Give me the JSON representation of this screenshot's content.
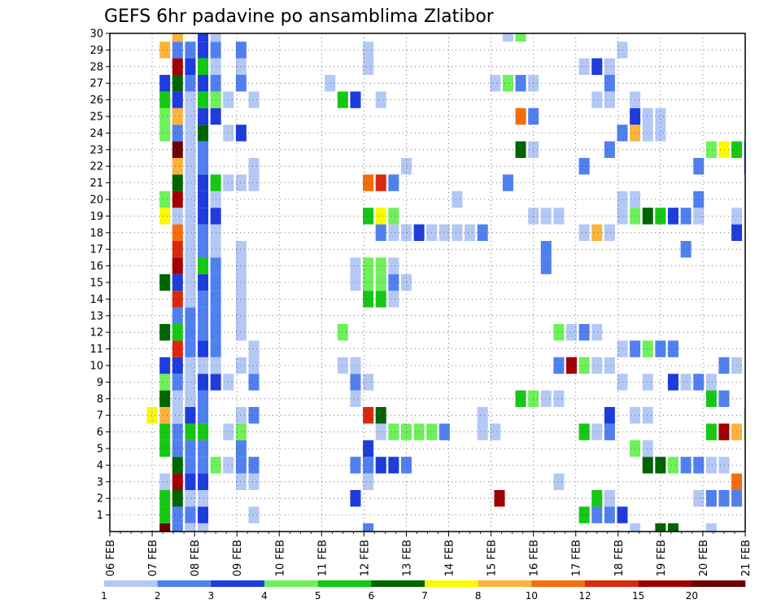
{
  "chart_data": {
    "type": "heatmap",
    "title": "GEFS 6hr padavine po ansamblima Zlatibor",
    "xlabel": "",
    "ylabel": "",
    "x_tick_labels": [
      "06 FEB",
      "07 FEB",
      "08 FEB",
      "09 FEB",
      "10 FEB",
      "11 FEB",
      "12 FEB",
      "13 FEB",
      "14 FEB",
      "15 FEB",
      "16 FEB",
      "17 FEB",
      "18 FEB",
      "19 FEB",
      "20 FEB",
      "21 FEB"
    ],
    "y_tick_labels": [
      "1",
      "2",
      "3",
      "4",
      "5",
      "6",
      "7",
      "8",
      "9",
      "10",
      "11",
      "12",
      "13",
      "14",
      "15",
      "16",
      "17",
      "18",
      "19",
      "20",
      "21",
      "22",
      "23",
      "24",
      "25",
      "26",
      "27",
      "28",
      "29",
      "30"
    ],
    "grid": true,
    "colorbar": {
      "labels": [
        "1",
        "2",
        "3",
        "4",
        "5",
        "6",
        "7",
        "8",
        "10",
        "12",
        "15",
        "20"
      ],
      "colors": [
        "#b4c8f5",
        "#5080f0",
        "#1e3cdc",
        "#6ef05a",
        "#14c814",
        "#006400",
        "#fafa00",
        "#fab43c",
        "#f56e0a",
        "#dc280a",
        "#a00000",
        "#6e0000"
      ]
    },
    "cells": [
      [
        7.3,
        0,
        11
      ],
      [
        7.6,
        0,
        1
      ],
      [
        7.9,
        0,
        0
      ],
      [
        8.2,
        0,
        0
      ],
      [
        12.1,
        0,
        1
      ],
      [
        18.4,
        0,
        0
      ],
      [
        19.0,
        0,
        5
      ],
      [
        19.3,
        0,
        5
      ],
      [
        20.2,
        0,
        0
      ],
      [
        7.3,
        1,
        4
      ],
      [
        7.6,
        1,
        1
      ],
      [
        7.9,
        1,
        1
      ],
      [
        8.2,
        1,
        2
      ],
      [
        9.4,
        1,
        0
      ],
      [
        17.2,
        1,
        4
      ],
      [
        17.5,
        1,
        1
      ],
      [
        17.8,
        1,
        1
      ],
      [
        18.1,
        1,
        2
      ],
      [
        7.3,
        2,
        4
      ],
      [
        7.6,
        2,
        5
      ],
      [
        7.9,
        2,
        0
      ],
      [
        8.2,
        2,
        0
      ],
      [
        11.8,
        2,
        2
      ],
      [
        15.2,
        2,
        10
      ],
      [
        17.5,
        2,
        4
      ],
      [
        17.8,
        2,
        0
      ],
      [
        19.9,
        2,
        0
      ],
      [
        20.2,
        2,
        1
      ],
      [
        20.5,
        2,
        1
      ],
      [
        20.8,
        2,
        1
      ],
      [
        7.3,
        3,
        0
      ],
      [
        7.6,
        3,
        10
      ],
      [
        7.9,
        3,
        2
      ],
      [
        8.2,
        3,
        2
      ],
      [
        9.1,
        3,
        0
      ],
      [
        9.4,
        3,
        0
      ],
      [
        12.1,
        3,
        0
      ],
      [
        16.6,
        3,
        0
      ],
      [
        20.8,
        3,
        8
      ],
      [
        7.6,
        4,
        5
      ],
      [
        7.9,
        4,
        1
      ],
      [
        8.2,
        4,
        1
      ],
      [
        8.5,
        4,
        3
      ],
      [
        8.8,
        4,
        0
      ],
      [
        9.1,
        4,
        1
      ],
      [
        9.4,
        4,
        1
      ],
      [
        11.8,
        4,
        1
      ],
      [
        12.1,
        4,
        1
      ],
      [
        12.4,
        4,
        2
      ],
      [
        12.7,
        4,
        2
      ],
      [
        13.0,
        4,
        1
      ],
      [
        18.7,
        4,
        5
      ],
      [
        19.0,
        4,
        5
      ],
      [
        19.3,
        4,
        3
      ],
      [
        19.6,
        4,
        1
      ],
      [
        19.9,
        4,
        1
      ],
      [
        20.2,
        4,
        0
      ],
      [
        20.5,
        4,
        0
      ],
      [
        7.3,
        5,
        4
      ],
      [
        7.6,
        5,
        1
      ],
      [
        7.9,
        5,
        1
      ],
      [
        8.2,
        5,
        1
      ],
      [
        9.1,
        5,
        1
      ],
      [
        12.1,
        5,
        2
      ],
      [
        18.4,
        5,
        3
      ],
      [
        18.7,
        5,
        0
      ],
      [
        7.3,
        6,
        4
      ],
      [
        7.6,
        6,
        1
      ],
      [
        7.9,
        6,
        4
      ],
      [
        8.2,
        6,
        4
      ],
      [
        8.8,
        6,
        0
      ],
      [
        9.1,
        6,
        3
      ],
      [
        12.4,
        6,
        0
      ],
      [
        12.7,
        6,
        3
      ],
      [
        13.0,
        6,
        3
      ],
      [
        13.3,
        6,
        3
      ],
      [
        13.6,
        6,
        3
      ],
      [
        13.9,
        6,
        1
      ],
      [
        14.8,
        6,
        0
      ],
      [
        15.1,
        6,
        0
      ],
      [
        17.2,
        6,
        4
      ],
      [
        17.5,
        6,
        0
      ],
      [
        17.8,
        6,
        1
      ],
      [
        20.2,
        6,
        4
      ],
      [
        20.5,
        6,
        10
      ],
      [
        20.8,
        6,
        7
      ],
      [
        21.1,
        6,
        3
      ],
      [
        7.0,
        7,
        6
      ],
      [
        7.3,
        7,
        7
      ],
      [
        7.6,
        7,
        0
      ],
      [
        7.9,
        7,
        2
      ],
      [
        8.2,
        7,
        1
      ],
      [
        9.1,
        7,
        0
      ],
      [
        9.4,
        7,
        1
      ],
      [
        12.1,
        7,
        9
      ],
      [
        12.4,
        7,
        5
      ],
      [
        14.8,
        7,
        0
      ],
      [
        17.8,
        7,
        2
      ],
      [
        18.4,
        7,
        0
      ],
      [
        18.7,
        7,
        0
      ],
      [
        21.1,
        7,
        3
      ],
      [
        7.3,
        8,
        5
      ],
      [
        7.6,
        8,
        0
      ],
      [
        7.9,
        8,
        0
      ],
      [
        8.2,
        8,
        1
      ],
      [
        11.8,
        8,
        0
      ],
      [
        15.7,
        8,
        4
      ],
      [
        16.0,
        8,
        3
      ],
      [
        16.3,
        8,
        0
      ],
      [
        16.6,
        8,
        0
      ],
      [
        20.2,
        8,
        4
      ],
      [
        20.5,
        8,
        1
      ],
      [
        7.3,
        9,
        3
      ],
      [
        7.6,
        9,
        1
      ],
      [
        7.9,
        9,
        0
      ],
      [
        8.2,
        9,
        2
      ],
      [
        8.5,
        9,
        2
      ],
      [
        8.8,
        9,
        0
      ],
      [
        9.4,
        9,
        1
      ],
      [
        11.8,
        9,
        1
      ],
      [
        12.1,
        9,
        0
      ],
      [
        18.1,
        9,
        0
      ],
      [
        18.7,
        9,
        0
      ],
      [
        19.3,
        9,
        2
      ],
      [
        19.6,
        9,
        0
      ],
      [
        19.9,
        9,
        1
      ],
      [
        20.2,
        9,
        0
      ],
      [
        7.3,
        10,
        2
      ],
      [
        7.6,
        10,
        2
      ],
      [
        7.9,
        10,
        0
      ],
      [
        8.2,
        10,
        0
      ],
      [
        8.5,
        10,
        0
      ],
      [
        9.1,
        10,
        0
      ],
      [
        9.4,
        10,
        0
      ],
      [
        11.5,
        10,
        0
      ],
      [
        11.8,
        10,
        0
      ],
      [
        16.6,
        10,
        1
      ],
      [
        16.9,
        10,
        10
      ],
      [
        17.2,
        10,
        3
      ],
      [
        17.5,
        10,
        0
      ],
      [
        17.8,
        10,
        0
      ],
      [
        20.5,
        10,
        1
      ],
      [
        20.8,
        10,
        0
      ],
      [
        7.6,
        11,
        9
      ],
      [
        7.9,
        11,
        1
      ],
      [
        8.2,
        11,
        2
      ],
      [
        8.5,
        11,
        1
      ],
      [
        9.4,
        11,
        0
      ],
      [
        18.1,
        11,
        0
      ],
      [
        18.4,
        11,
        1
      ],
      [
        18.7,
        11,
        3
      ],
      [
        19.0,
        11,
        1
      ],
      [
        19.3,
        11,
        1
      ],
      [
        7.3,
        12,
        5
      ],
      [
        7.6,
        12,
        4
      ],
      [
        7.9,
        12,
        1
      ],
      [
        8.2,
        12,
        1
      ],
      [
        8.5,
        12,
        1
      ],
      [
        9.1,
        12,
        0
      ],
      [
        11.5,
        12,
        3
      ],
      [
        16.6,
        12,
        3
      ],
      [
        16.9,
        12,
        0
      ],
      [
        17.2,
        12,
        1
      ],
      [
        17.5,
        12,
        0
      ],
      [
        7.6,
        13,
        1
      ],
      [
        7.9,
        13,
        1
      ],
      [
        8.2,
        13,
        1
      ],
      [
        8.5,
        13,
        1
      ],
      [
        9.1,
        13,
        0
      ],
      [
        7.6,
        14,
        9
      ],
      [
        7.9,
        14,
        0
      ],
      [
        8.2,
        14,
        1
      ],
      [
        8.5,
        14,
        1
      ],
      [
        9.1,
        14,
        0
      ],
      [
        12.1,
        14,
        4
      ],
      [
        12.4,
        14,
        4
      ],
      [
        12.7,
        14,
        0
      ],
      [
        7.3,
        15,
        5
      ],
      [
        7.6,
        15,
        2
      ],
      [
        7.9,
        15,
        0
      ],
      [
        8.2,
        15,
        2
      ],
      [
        8.5,
        15,
        1
      ],
      [
        9.1,
        15,
        0
      ],
      [
        11.8,
        15,
        0
      ],
      [
        12.1,
        15,
        3
      ],
      [
        12.4,
        15,
        3
      ],
      [
        12.7,
        15,
        1
      ],
      [
        13.0,
        15,
        0
      ],
      [
        7.6,
        16,
        10
      ],
      [
        7.9,
        16,
        0
      ],
      [
        8.2,
        16,
        4
      ],
      [
        8.5,
        16,
        1
      ],
      [
        9.1,
        16,
        0
      ],
      [
        11.8,
        16,
        0
      ],
      [
        12.1,
        16,
        3
      ],
      [
        12.4,
        16,
        3
      ],
      [
        12.7,
        16,
        0
      ],
      [
        16.3,
        16,
        1
      ],
      [
        7.6,
        17,
        9
      ],
      [
        7.9,
        17,
        0
      ],
      [
        8.2,
        17,
        1
      ],
      [
        8.5,
        17,
        0
      ],
      [
        9.1,
        17,
        0
      ],
      [
        16.3,
        17,
        1
      ],
      [
        19.6,
        17,
        1
      ],
      [
        7.6,
        18,
        8
      ],
      [
        7.9,
        18,
        0
      ],
      [
        8.2,
        18,
        1
      ],
      [
        8.5,
        18,
        0
      ],
      [
        12.4,
        18,
        1
      ],
      [
        12.7,
        18,
        0
      ],
      [
        13.0,
        18,
        0
      ],
      [
        13.3,
        18,
        2
      ],
      [
        13.6,
        18,
        0
      ],
      [
        13.9,
        18,
        0
      ],
      [
        14.2,
        18,
        0
      ],
      [
        14.5,
        18,
        0
      ],
      [
        14.8,
        18,
        1
      ],
      [
        17.2,
        18,
        0
      ],
      [
        17.5,
        18,
        7
      ],
      [
        17.8,
        18,
        0
      ],
      [
        20.8,
        18,
        2
      ],
      [
        7.3,
        19,
        6
      ],
      [
        7.6,
        19,
        0
      ],
      [
        7.9,
        19,
        0
      ],
      [
        8.2,
        19,
        2
      ],
      [
        8.5,
        19,
        2
      ],
      [
        12.1,
        19,
        4
      ],
      [
        12.4,
        19,
        6
      ],
      [
        12.7,
        19,
        3
      ],
      [
        16.0,
        19,
        0
      ],
      [
        16.3,
        19,
        0
      ],
      [
        16.6,
        19,
        0
      ],
      [
        18.1,
        19,
        0
      ],
      [
        18.4,
        19,
        3
      ],
      [
        18.7,
        19,
        5
      ],
      [
        19.0,
        19,
        4
      ],
      [
        19.3,
        19,
        2
      ],
      [
        19.6,
        19,
        1
      ],
      [
        19.9,
        19,
        0
      ],
      [
        20.8,
        19,
        0
      ],
      [
        7.3,
        20,
        3
      ],
      [
        7.6,
        20,
        10
      ],
      [
        7.9,
        20,
        0
      ],
      [
        8.2,
        20,
        2
      ],
      [
        8.5,
        20,
        0
      ],
      [
        14.2,
        20,
        0
      ],
      [
        18.1,
        20,
        0
      ],
      [
        18.4,
        20,
        0
      ],
      [
        19.9,
        20,
        1
      ],
      [
        7.6,
        21,
        5
      ],
      [
        7.9,
        21,
        0
      ],
      [
        8.2,
        21,
        2
      ],
      [
        8.5,
        21,
        4
      ],
      [
        8.8,
        21,
        0
      ],
      [
        9.1,
        21,
        0
      ],
      [
        9.4,
        21,
        0
      ],
      [
        12.1,
        21,
        8
      ],
      [
        12.4,
        21,
        9
      ],
      [
        12.7,
        21,
        1
      ],
      [
        15.4,
        21,
        1
      ],
      [
        7.6,
        22,
        7
      ],
      [
        7.9,
        22,
        0
      ],
      [
        8.2,
        22,
        1
      ],
      [
        9.4,
        22,
        0
      ],
      [
        13.0,
        22,
        0
      ],
      [
        17.2,
        22,
        1
      ],
      [
        19.9,
        22,
        1
      ],
      [
        21.1,
        22,
        1
      ],
      [
        7.6,
        23,
        11
      ],
      [
        7.9,
        23,
        0
      ],
      [
        8.2,
        23,
        1
      ],
      [
        15.7,
        23,
        5
      ],
      [
        16.0,
        23,
        0
      ],
      [
        17.8,
        23,
        1
      ],
      [
        20.2,
        23,
        3
      ],
      [
        20.5,
        23,
        6
      ],
      [
        20.8,
        23,
        4
      ],
      [
        21.1,
        23,
        1
      ],
      [
        7.3,
        24,
        3
      ],
      [
        7.6,
        24,
        1
      ],
      [
        7.9,
        24,
        0
      ],
      [
        8.2,
        24,
        5
      ],
      [
        8.8,
        24,
        0
      ],
      [
        9.1,
        24,
        2
      ],
      [
        18.1,
        24,
        1
      ],
      [
        18.4,
        24,
        7
      ],
      [
        18.7,
        24,
        0
      ],
      [
        19.0,
        24,
        0
      ],
      [
        7.3,
        25,
        3
      ],
      [
        7.6,
        25,
        7
      ],
      [
        7.9,
        25,
        0
      ],
      [
        8.2,
        25,
        2
      ],
      [
        8.5,
        25,
        2
      ],
      [
        15.7,
        25,
        8
      ],
      [
        16.0,
        25,
        1
      ],
      [
        18.4,
        25,
        2
      ],
      [
        18.7,
        25,
        0
      ],
      [
        19.0,
        25,
        0
      ],
      [
        7.3,
        26,
        4
      ],
      [
        7.6,
        26,
        2
      ],
      [
        7.9,
        26,
        0
      ],
      [
        8.2,
        26,
        4
      ],
      [
        8.5,
        26,
        3
      ],
      [
        8.8,
        26,
        0
      ],
      [
        9.4,
        26,
        0
      ],
      [
        11.5,
        26,
        4
      ],
      [
        11.8,
        26,
        2
      ],
      [
        12.4,
        26,
        0
      ],
      [
        17.5,
        26,
        0
      ],
      [
        17.8,
        26,
        0
      ],
      [
        18.4,
        26,
        0
      ],
      [
        7.3,
        27,
        2
      ],
      [
        7.6,
        27,
        5
      ],
      [
        7.9,
        27,
        1
      ],
      [
        8.2,
        27,
        2
      ],
      [
        8.5,
        27,
        1
      ],
      [
        9.1,
        27,
        1
      ],
      [
        11.2,
        27,
        0
      ],
      [
        15.1,
        27,
        0
      ],
      [
        15.4,
        27,
        3
      ],
      [
        15.7,
        27,
        1
      ],
      [
        16.0,
        27,
        0
      ],
      [
        17.8,
        27,
        1
      ],
      [
        7.6,
        28,
        10
      ],
      [
        7.9,
        28,
        2
      ],
      [
        8.2,
        28,
        4
      ],
      [
        8.5,
        28,
        0
      ],
      [
        9.1,
        28,
        0
      ],
      [
        12.1,
        28,
        0
      ],
      [
        17.2,
        28,
        0
      ],
      [
        17.5,
        28,
        2
      ],
      [
        17.8,
        28,
        0
      ],
      [
        7.3,
        29,
        7
      ],
      [
        7.6,
        29,
        1
      ],
      [
        7.9,
        29,
        1
      ],
      [
        8.2,
        29,
        2
      ],
      [
        8.5,
        29,
        1
      ],
      [
        9.1,
        29,
        1
      ],
      [
        12.1,
        29,
        0
      ],
      [
        18.1,
        29,
        0
      ],
      [
        7.6,
        30,
        7
      ],
      [
        8.2,
        30,
        2
      ],
      [
        8.5,
        30,
        0
      ],
      [
        15.4,
        30,
        0
      ],
      [
        15.7,
        30,
        3
      ]
    ]
  }
}
